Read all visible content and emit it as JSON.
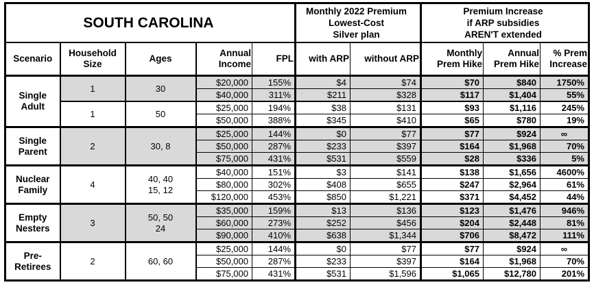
{
  "title": "SOUTH CAROLINA",
  "header": {
    "premium_block": "Monthly 2022 Premium\nLowest-Cost\nSilver plan",
    "increase_block": "Premium Increase\nif ARP subsidies\nAREN'T extended",
    "columns": {
      "scenario": "Scenario",
      "household_size": "Household\nSize",
      "ages": "Ages",
      "annual_income": "Annual\nIncome",
      "fpl": "FPL",
      "with_arp": "with ARP",
      "without_arp": "without ARP",
      "monthly_hike": "Monthly\nPrem Hike",
      "annual_hike": "Annual\nPrem Hike",
      "pct_increase": "% Prem\nIncrease"
    }
  },
  "colors": {
    "shaded_row": "#d9d9d9",
    "border": "#000000",
    "background": "#ffffff",
    "text": "#000000"
  },
  "groups": [
    {
      "scenario": "Single\nAdult",
      "subgroups": [
        {
          "household_size": "1",
          "ages": "30",
          "shaded": true,
          "rows": [
            {
              "income": "$20,000",
              "fpl": "155%",
              "with_arp": "$4",
              "without_arp": "$74",
              "monthly_hike": "$70",
              "annual_hike": "$840",
              "pct_increase": "1750%"
            },
            {
              "income": "$40,000",
              "fpl": "311%",
              "with_arp": "$211",
              "without_arp": "$328",
              "monthly_hike": "$117",
              "annual_hike": "$1,404",
              "pct_increase": "55%"
            }
          ]
        },
        {
          "household_size": "1",
          "ages": "50",
          "shaded": false,
          "rows": [
            {
              "income": "$25,000",
              "fpl": "194%",
              "with_arp": "$38",
              "without_arp": "$131",
              "monthly_hike": "$93",
              "annual_hike": "$1,116",
              "pct_increase": "245%"
            },
            {
              "income": "$50,000",
              "fpl": "388%",
              "with_arp": "$345",
              "without_arp": "$410",
              "monthly_hike": "$65",
              "annual_hike": "$780",
              "pct_increase": "19%"
            }
          ]
        }
      ]
    },
    {
      "scenario": "Single\nParent",
      "subgroups": [
        {
          "household_size": "2",
          "ages": "30, 8",
          "shaded": true,
          "rows": [
            {
              "income": "$25,000",
              "fpl": "144%",
              "with_arp": "$0",
              "without_arp": "$77",
              "monthly_hike": "$77",
              "annual_hike": "$924",
              "pct_increase": "∞"
            },
            {
              "income": "$50,000",
              "fpl": "287%",
              "with_arp": "$233",
              "without_arp": "$397",
              "monthly_hike": "$164",
              "annual_hike": "$1,968",
              "pct_increase": "70%"
            },
            {
              "income": "$75,000",
              "fpl": "431%",
              "with_arp": "$531",
              "without_arp": "$559",
              "monthly_hike": "$28",
              "annual_hike": "$336",
              "pct_increase": "5%"
            }
          ]
        }
      ]
    },
    {
      "scenario": "Nuclear\nFamily",
      "subgroups": [
        {
          "household_size": "4",
          "ages": "40, 40\n15, 12",
          "shaded": false,
          "rows": [
            {
              "income": "$40,000",
              "fpl": "151%",
              "with_arp": "$3",
              "without_arp": "$141",
              "monthly_hike": "$138",
              "annual_hike": "$1,656",
              "pct_increase": "4600%"
            },
            {
              "income": "$80,000",
              "fpl": "302%",
              "with_arp": "$408",
              "without_arp": "$655",
              "monthly_hike": "$247",
              "annual_hike": "$2,964",
              "pct_increase": "61%"
            },
            {
              "income": "$120,000",
              "fpl": "453%",
              "with_arp": "$850",
              "without_arp": "$1,221",
              "monthly_hike": "$371",
              "annual_hike": "$4,452",
              "pct_increase": "44%"
            }
          ]
        }
      ]
    },
    {
      "scenario": "Empty\nNesters",
      "subgroups": [
        {
          "household_size": "3",
          "ages": "50, 50\n24",
          "shaded": true,
          "rows": [
            {
              "income": "$35,000",
              "fpl": "159%",
              "with_arp": "$13",
              "without_arp": "$136",
              "monthly_hike": "$123",
              "annual_hike": "$1,476",
              "pct_increase": "946%"
            },
            {
              "income": "$60,000",
              "fpl": "273%",
              "with_arp": "$252",
              "without_arp": "$456",
              "monthly_hike": "$204",
              "annual_hike": "$2,448",
              "pct_increase": "81%"
            },
            {
              "income": "$90,000",
              "fpl": "410%",
              "with_arp": "$638",
              "without_arp": "$1,344",
              "monthly_hike": "$706",
              "annual_hike": "$8,472",
              "pct_increase": "111%"
            }
          ]
        }
      ]
    },
    {
      "scenario": "Pre-\nRetirees",
      "subgroups": [
        {
          "household_size": "2",
          "ages": "60, 60",
          "shaded": false,
          "rows": [
            {
              "income": "$25,000",
              "fpl": "144%",
              "with_arp": "$0",
              "without_arp": "$77",
              "monthly_hike": "$77",
              "annual_hike": "$924",
              "pct_increase": "∞"
            },
            {
              "income": "$50,000",
              "fpl": "287%",
              "with_arp": "$233",
              "without_arp": "$397",
              "monthly_hike": "$164",
              "annual_hike": "$1,968",
              "pct_increase": "70%"
            },
            {
              "income": "$75,000",
              "fpl": "431%",
              "with_arp": "$531",
              "without_arp": "$1,596",
              "monthly_hike": "$1,065",
              "annual_hike": "$12,780",
              "pct_increase": "201%"
            }
          ]
        }
      ]
    }
  ]
}
